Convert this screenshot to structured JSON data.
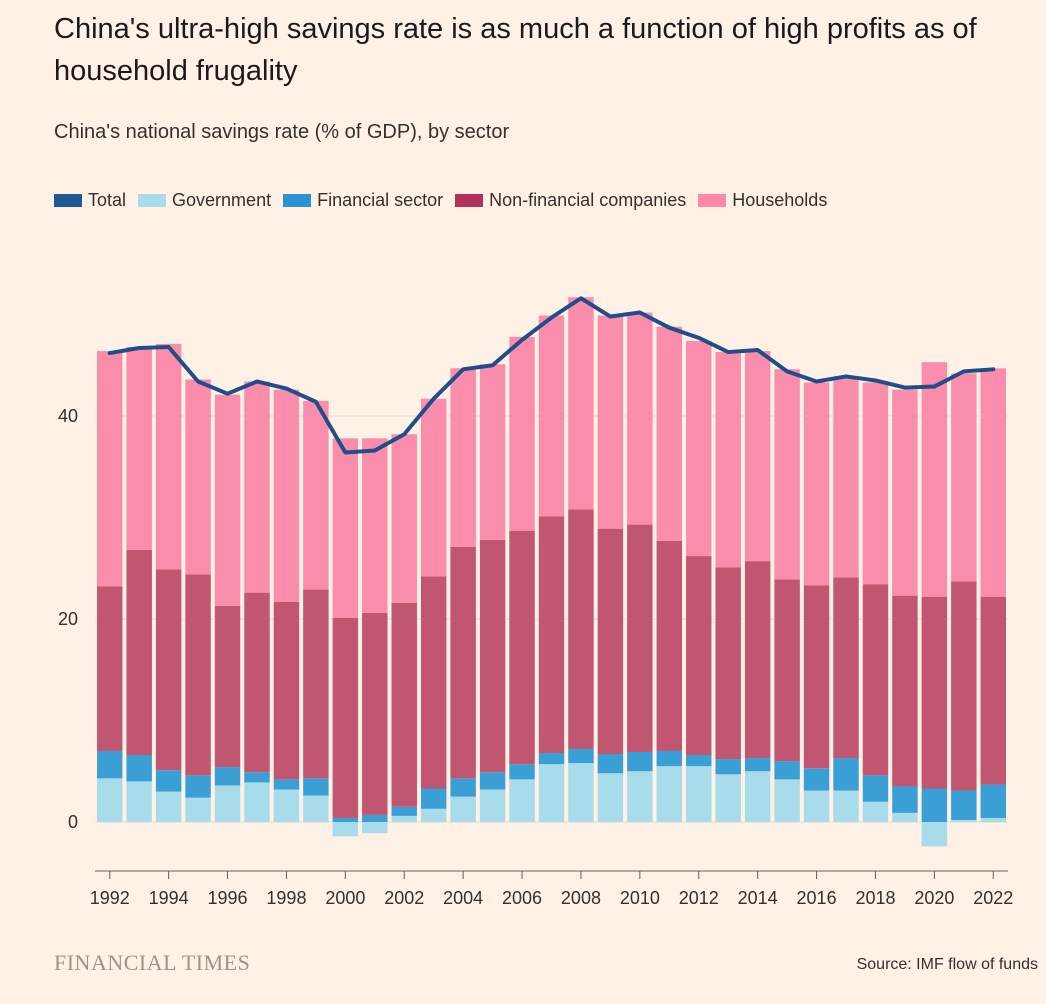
{
  "title": "China's ultra-high savings rate is as much a function of high profits as of household frugality",
  "subtitle": "China's national savings rate (% of GDP), by sector",
  "brand": "FINANCIAL TIMES",
  "source": "Source: IMF flow of funds",
  "colors": {
    "total": "#1F4E89",
    "government": "#A8DCEB",
    "financial": "#3A9FD5",
    "nonfinancial": "#C0566F",
    "households": "#FB8DAC"
  },
  "legend": [
    {
      "key": "total",
      "label": "Total",
      "color": "#1F5A92"
    },
    {
      "key": "government",
      "label": "Government",
      "color": "#A8DCEB"
    },
    {
      "key": "financial",
      "label": "Financial sector",
      "color": "#2B93D4"
    },
    {
      "key": "nonfinancial",
      "label": "Non-financial companies",
      "color": "#B0325B"
    },
    {
      "key": "households",
      "label": "Households",
      "color": "#FF87A8"
    }
  ],
  "chart_data": {
    "type": "bar",
    "stacked": true,
    "ylim": [
      -5,
      52
    ],
    "yticks": [
      0,
      20,
      40
    ],
    "xtick_labels": [
      "1992",
      "1994",
      "1996",
      "1998",
      "2000",
      "2002",
      "2004",
      "2006",
      "2008",
      "2010",
      "2012",
      "2014",
      "2016",
      "2018",
      "2020",
      "2022"
    ],
    "categories": [
      "1992",
      "1993",
      "1994",
      "1995",
      "1996",
      "1997",
      "1998",
      "1999",
      "2000",
      "2001",
      "2002",
      "2003",
      "2004",
      "2005",
      "2006",
      "2007",
      "2008",
      "2009",
      "2010",
      "2011",
      "2012",
      "2013",
      "2014",
      "2015",
      "2016",
      "2017",
      "2018",
      "2019",
      "2020",
      "2021",
      "2022"
    ],
    "series": [
      {
        "name": "Government",
        "key": "government",
        "values": [
          4.3,
          4.0,
          3.0,
          2.4,
          3.6,
          3.9,
          3.2,
          2.6,
          -1.4,
          -1.1,
          0.6,
          1.3,
          2.5,
          3.2,
          4.2,
          5.7,
          5.8,
          4.8,
          5.0,
          5.5,
          5.5,
          4.7,
          5.0,
          4.2,
          3.1,
          3.1,
          2.0,
          0.9,
          -2.4,
          0.2,
          0.4
        ]
      },
      {
        "name": "Financial sector",
        "key": "financial",
        "values": [
          2.7,
          2.6,
          2.1,
          2.2,
          1.8,
          1.0,
          1.0,
          1.7,
          0.4,
          0.7,
          0.9,
          2.0,
          1.8,
          1.7,
          1.5,
          1.1,
          1.4,
          1.9,
          1.9,
          1.5,
          1.1,
          1.5,
          1.3,
          1.8,
          2.2,
          3.2,
          2.6,
          2.6,
          3.3,
          2.9,
          3.3
        ]
      },
      {
        "name": "Non-financial companies",
        "key": "nonfinancial",
        "values": [
          16.2,
          20.2,
          19.8,
          19.8,
          15.9,
          17.7,
          17.5,
          18.6,
          19.7,
          19.9,
          20.1,
          20.9,
          22.8,
          22.9,
          23.0,
          23.3,
          23.6,
          22.2,
          22.4,
          20.7,
          19.6,
          18.9,
          19.4,
          17.9,
          18.0,
          17.8,
          18.8,
          18.8,
          18.9,
          20.6,
          18.5
        ]
      },
      {
        "name": "Households",
        "key": "households",
        "values": [
          23.2,
          20.0,
          22.2,
          19.2,
          20.8,
          20.8,
          20.9,
          18.6,
          17.7,
          17.2,
          16.6,
          17.5,
          17.6,
          17.3,
          19.1,
          19.8,
          20.9,
          21.0,
          20.9,
          21.1,
          21.2,
          21.2,
          20.7,
          20.7,
          20.0,
          19.6,
          19.9,
          20.3,
          23.1,
          20.5,
          22.5
        ]
      },
      {
        "name": "Total",
        "key": "total",
        "type": "line",
        "values": [
          46.2,
          46.7,
          46.8,
          43.4,
          42.2,
          43.4,
          42.7,
          41.4,
          36.4,
          36.6,
          38.2,
          41.7,
          44.6,
          45.0,
          47.5,
          49.7,
          51.6,
          49.8,
          50.2,
          48.7,
          47.7,
          46.3,
          46.5,
          44.4,
          43.4,
          43.9,
          43.5,
          42.8,
          42.9,
          44.4,
          44.6
        ]
      }
    ]
  }
}
